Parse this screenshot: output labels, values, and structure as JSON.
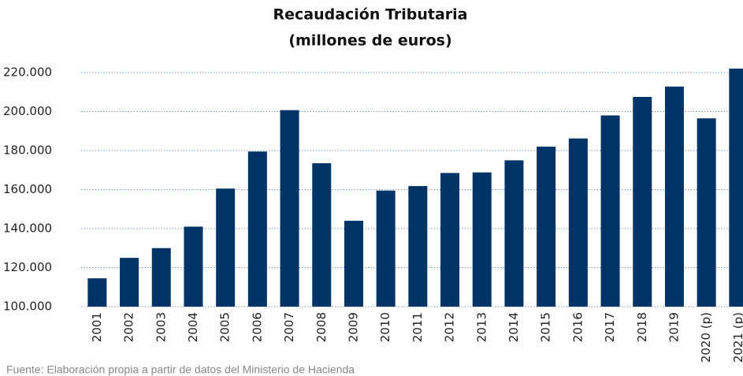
{
  "chart_data": {
    "type": "bar",
    "title": "Recaudación Tributaria",
    "subtitle": "(millones de euros)",
    "source": "Fuente:  Elaboración propia a partir de datos del Ministerio de Hacienda",
    "categories": [
      "2001",
      "2002",
      "2003",
      "2004",
      "2005",
      "2006",
      "2007",
      "2008",
      "2009",
      "2010",
      "2011",
      "2012",
      "2013",
      "2014",
      "2015",
      "2016",
      "2017",
      "2018",
      "2019",
      "2020 (p)",
      "2021 (p)"
    ],
    "values": [
      114500,
      125000,
      130000,
      141000,
      160500,
      179500,
      200700,
      173500,
      144000,
      159500,
      161800,
      168500,
      168800,
      175000,
      182000,
      186200,
      198000,
      207500,
      212800,
      196500,
      222000
    ],
    "color": "#003366",
    "ylim": [
      100000,
      220000
    ],
    "yticks": [
      {
        "value": 100000,
        "label": "100.000"
      },
      {
        "value": 120000,
        "label": "120.000"
      },
      {
        "value": 140000,
        "label": "140.000"
      },
      {
        "value": 160000,
        "label": "160.000"
      },
      {
        "value": 180000,
        "label": "180.000"
      },
      {
        "value": 200000,
        "label": "200.000"
      },
      {
        "value": 220000,
        "label": "220.000"
      }
    ],
    "grid": true
  }
}
